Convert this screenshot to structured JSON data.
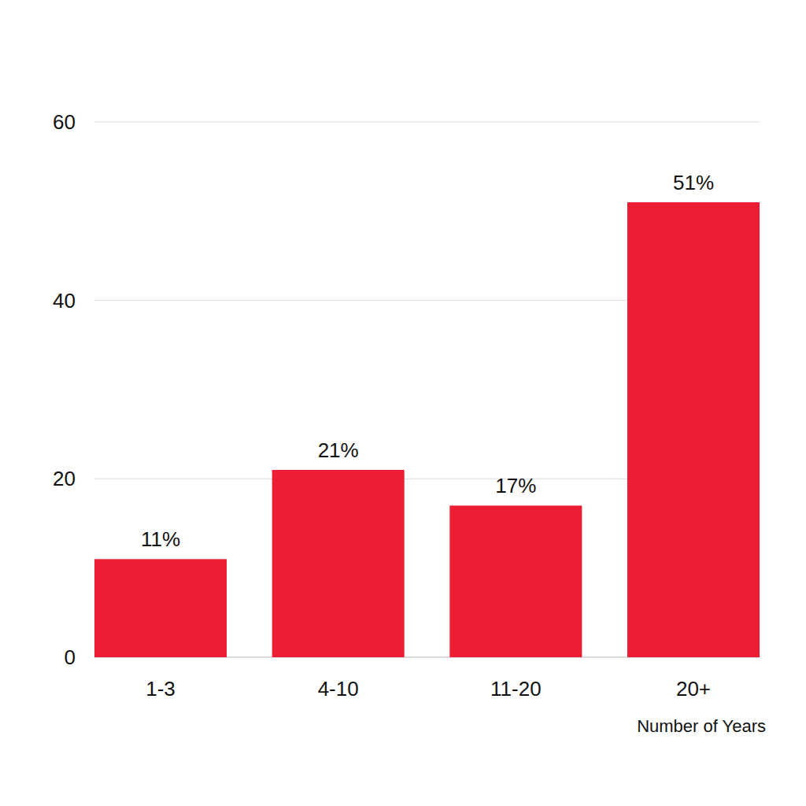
{
  "chart_data": {
    "type": "bar",
    "categories": [
      "1-3",
      "4-10",
      "11-20",
      "20+"
    ],
    "values": [
      11,
      21,
      17,
      51
    ],
    "value_labels": [
      "11%",
      "21%",
      "17%",
      "51%"
    ],
    "data_labels": true,
    "color": "#ee1d33",
    "ylim": [
      0,
      60
    ],
    "yticks": [
      0,
      20,
      40,
      60
    ],
    "grid": true,
    "x_label": "Number of Years"
  }
}
